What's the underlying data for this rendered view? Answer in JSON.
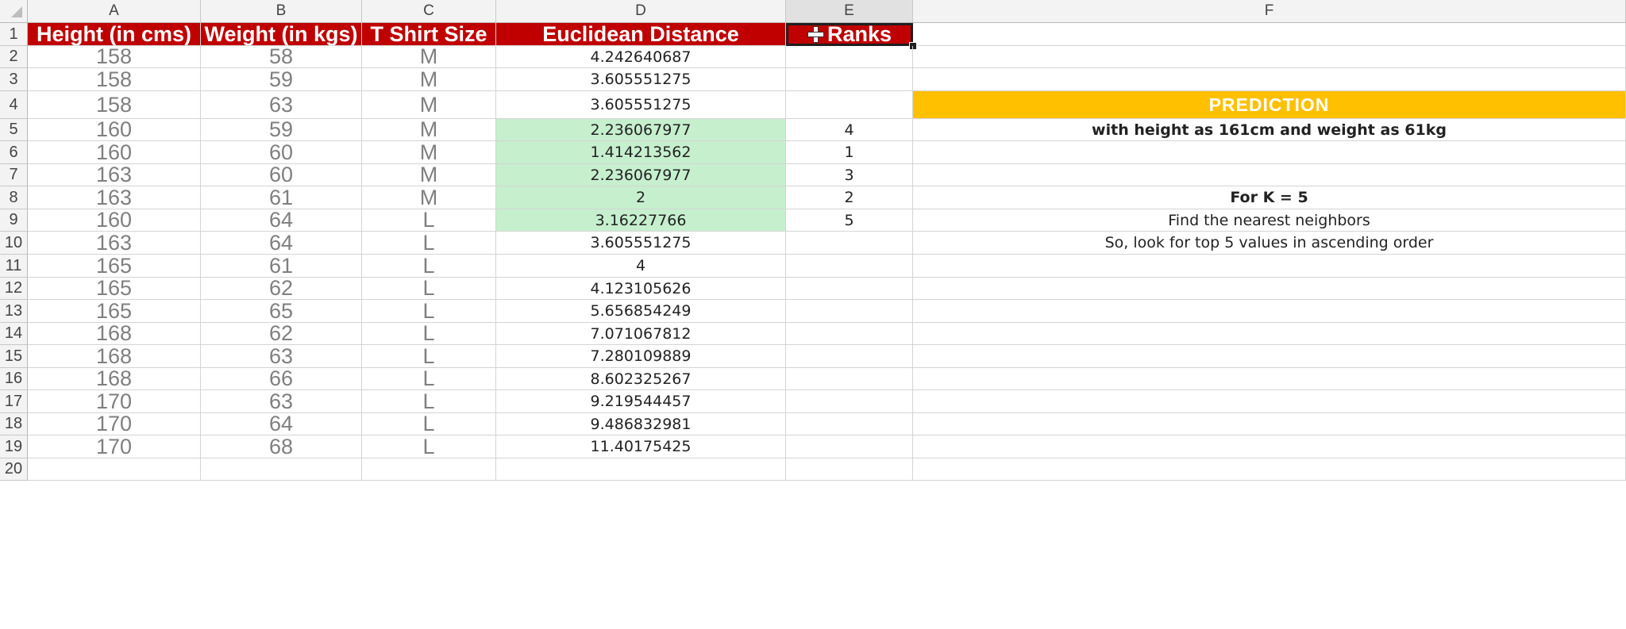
{
  "columns": [
    "A",
    "B",
    "C",
    "D",
    "E",
    "F"
  ],
  "rows": [
    "1",
    "2",
    "3",
    "4",
    "5",
    "6",
    "7",
    "8",
    "9",
    "10",
    "11",
    "12",
    "13",
    "14",
    "15",
    "16",
    "17",
    "18",
    "19",
    "20"
  ],
  "headers": {
    "height": "Height (in cms)",
    "weight": "Weight (in kgs)",
    "size": "T Shirt Size",
    "distance": "Euclidean Distance",
    "ranks": "Ranks"
  },
  "data_rows": [
    {
      "height": "158",
      "weight": "58",
      "size": "M",
      "distance": "4.242640687",
      "rank": ""
    },
    {
      "height": "158",
      "weight": "59",
      "size": "M",
      "distance": "3.605551275",
      "rank": ""
    },
    {
      "height": "158",
      "weight": "63",
      "size": "M",
      "distance": "3.605551275",
      "rank": ""
    },
    {
      "height": "160",
      "weight": "59",
      "size": "M",
      "distance": "2.236067977",
      "rank": "4"
    },
    {
      "height": "160",
      "weight": "60",
      "size": "M",
      "distance": "1.414213562",
      "rank": "1"
    },
    {
      "height": "163",
      "weight": "60",
      "size": "M",
      "distance": "2.236067977",
      "rank": "3"
    },
    {
      "height": "163",
      "weight": "61",
      "size": "M",
      "distance": "2",
      "rank": "2"
    },
    {
      "height": "160",
      "weight": "64",
      "size": "L",
      "distance": "3.16227766",
      "rank": "5"
    },
    {
      "height": "163",
      "weight": "64",
      "size": "L",
      "distance": "3.605551275",
      "rank": ""
    },
    {
      "height": "165",
      "weight": "61",
      "size": "L",
      "distance": "4",
      "rank": ""
    },
    {
      "height": "165",
      "weight": "62",
      "size": "L",
      "distance": "4.123105626",
      "rank": ""
    },
    {
      "height": "165",
      "weight": "65",
      "size": "L",
      "distance": "5.656854249",
      "rank": ""
    },
    {
      "height": "168",
      "weight": "62",
      "size": "L",
      "distance": "7.071067812",
      "rank": ""
    },
    {
      "height": "168",
      "weight": "63",
      "size": "L",
      "distance": "7.280109889",
      "rank": ""
    },
    {
      "height": "168",
      "weight": "66",
      "size": "L",
      "distance": "8.602325267",
      "rank": ""
    },
    {
      "height": "170",
      "weight": "63",
      "size": "L",
      "distance": "9.219544457",
      "rank": ""
    },
    {
      "height": "170",
      "weight": "64",
      "size": "L",
      "distance": "9.486832981",
      "rank": ""
    },
    {
      "height": "170",
      "weight": "68",
      "size": "L",
      "distance": "11.40175425",
      "rank": ""
    }
  ],
  "highlighted_rows": [
    5,
    6,
    7,
    8,
    9
  ],
  "notes": {
    "prediction": "PREDICTION",
    "query": "with height as 161cm and weight as 61kg",
    "k": "For K = 5",
    "find": "Find the nearest neighbors",
    "lookup": "So, look for top 5 values in ascending order"
  },
  "colors": {
    "header_fill": "#c00000",
    "prediction_fill": "#ffc000",
    "highlight_fill": "#c6efce"
  },
  "icons": {
    "corner": "select-all-triangle-icon",
    "cursor": "plus-cursor-icon"
  }
}
